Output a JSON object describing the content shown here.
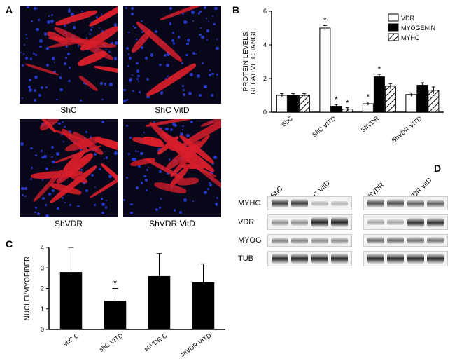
{
  "panelA": {
    "label": "A",
    "images": [
      {
        "name": "ShC",
        "fiber_density": "low",
        "fiber_count": 12,
        "nuclei_count": 90
      },
      {
        "name": "ShC VitD",
        "fiber_density": "very_low",
        "fiber_count": 4,
        "nuclei_count": 95
      },
      {
        "name": "ShVDR",
        "fiber_density": "high",
        "fiber_count": 18,
        "nuclei_count": 80
      },
      {
        "name": "ShVDR VitD",
        "fiber_density": "high",
        "fiber_count": 20,
        "nuclei_count": 80
      }
    ],
    "colors": {
      "background": "#08081a",
      "nuclei": "#2b3fe0",
      "fiber": "#d81e2b"
    }
  },
  "panelB": {
    "label": "B",
    "type": "bar",
    "ylabel": "PROTEIN LEVELS\nRELATIVE CHANGE",
    "ylim": [
      0,
      6
    ],
    "ytick_step": 2,
    "label_fontsize": 10,
    "tick_fontsize": 9,
    "groups": [
      "ShC",
      "ShC VITD",
      "ShVDR",
      "ShVDR VITD"
    ],
    "series": [
      {
        "name": "VDR",
        "fill": "#ffffff",
        "stroke": "#000000",
        "pattern": "none"
      },
      {
        "name": "MYOGENIN",
        "fill": "#000000",
        "stroke": "#000000",
        "pattern": "none"
      },
      {
        "name": "MYHC",
        "fill": "#ffffff",
        "stroke": "#000000",
        "pattern": "hatch"
      }
    ],
    "values": [
      [
        1.0,
        1.0,
        1.0
      ],
      [
        5.0,
        0.35,
        0.18
      ],
      [
        0.5,
        2.1,
        1.55
      ],
      [
        1.05,
        1.6,
        1.3
      ]
    ],
    "errors": [
      [
        0.1,
        0.1,
        0.1
      ],
      [
        0.15,
        0.1,
        0.08
      ],
      [
        0.1,
        0.15,
        0.15
      ],
      [
        0.1,
        0.15,
        0.2
      ]
    ],
    "stars": [
      [
        false,
        false,
        false
      ],
      [
        true,
        true,
        true
      ],
      [
        true,
        true,
        false
      ],
      [
        false,
        false,
        false
      ]
    ],
    "legend_pos": "top-right",
    "background_color": "#ffffff",
    "axis_color": "#000000",
    "bar_width": 0.26
  },
  "panelC": {
    "label": "C",
    "type": "bar",
    "ylabel": "NUCLEI/MYOFIBER",
    "ylim": [
      0,
      4
    ],
    "ytick_step": 1,
    "label_fontsize": 10,
    "tick_fontsize": 9,
    "categories": [
      "shC C",
      "shC VITD",
      "shVDR C",
      "shVDR VITD"
    ],
    "values": [
      2.8,
      1.4,
      2.6,
      2.3
    ],
    "errors": [
      1.2,
      0.6,
      1.1,
      0.9
    ],
    "stars": [
      false,
      true,
      false,
      false
    ],
    "bar_color": "#000000",
    "background_color": "#ffffff",
    "axis_color": "#000000",
    "bar_width": 0.5
  },
  "panelD": {
    "label": "D",
    "lane_groups": [
      {
        "lanes": [
          "ShC",
          "ShC VitD"
        ],
        "replicates": 2
      },
      {
        "lanes": [
          "ShVDR",
          "ShVDR vitD"
        ],
        "replicates": 2
      }
    ],
    "rows": [
      "MYHC",
      "VDR",
      "MYOG",
      "TUB"
    ],
    "intensities": {
      "MYHC": [
        [
          0.8,
          0.8,
          0.15,
          0.15
        ],
        [
          0.7,
          0.7,
          0.6,
          0.6
        ]
      ],
      "VDR": [
        [
          0.35,
          0.35,
          0.95,
          0.95
        ],
        [
          0.25,
          0.25,
          0.85,
          0.85
        ]
      ],
      "MYOG": [
        [
          0.4,
          0.4,
          0.35,
          0.35
        ],
        [
          0.55,
          0.55,
          0.5,
          0.5
        ]
      ],
      "TUB": [
        [
          0.9,
          0.9,
          0.9,
          0.9
        ],
        [
          0.9,
          0.9,
          0.9,
          0.9
        ]
      ]
    },
    "band_color": "#222222",
    "strip_bg": "#f2f2f2"
  }
}
